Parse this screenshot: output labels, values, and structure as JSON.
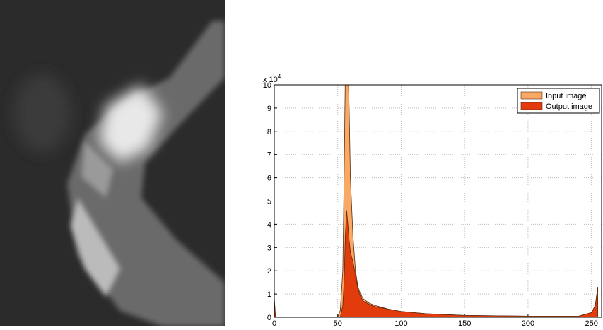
{
  "chart_data": {
    "type": "area",
    "y_scale_label": {
      "base": "x 10",
      "exponent": "4"
    },
    "x": [
      0,
      1,
      2,
      50,
      52,
      54,
      55,
      56,
      57,
      58,
      59,
      60,
      62,
      64,
      66,
      68,
      70,
      75,
      80,
      90,
      100,
      120,
      150,
      200,
      240,
      250,
      253,
      255
    ],
    "series": [
      {
        "name": "Input image",
        "color": "#f9a964",
        "values": [
          0.8,
          0,
          0,
          0,
          0.3,
          2,
          6,
          10.5,
          12,
          11,
          9,
          6,
          3.5,
          2,
          1.3,
          1,
          0.8,
          0.6,
          0.5,
          0.35,
          0.25,
          0.15,
          0.08,
          0.05,
          0.05,
          0.2,
          0.5,
          1.3
        ]
      },
      {
        "name": "Output image",
        "color": "#e23c0c",
        "values": [
          0.8,
          0,
          0,
          0,
          0,
          0.5,
          1.5,
          3.5,
          4.6,
          4,
          3.3,
          2.8,
          2.4,
          1.8,
          1.2,
          0.9,
          0.7,
          0.55,
          0.45,
          0.35,
          0.25,
          0.15,
          0.08,
          0.05,
          0.05,
          0.2,
          0.5,
          1.3
        ]
      }
    ],
    "xlim": [
      0,
      258
    ],
    "xticks": [
      0,
      50,
      100,
      150,
      200,
      250
    ],
    "ylim": [
      0,
      10
    ],
    "yticks": [
      0,
      1,
      2,
      3,
      4,
      5,
      6,
      7,
      8,
      9,
      10
    ],
    "grid": true,
    "legend": "top-right"
  }
}
